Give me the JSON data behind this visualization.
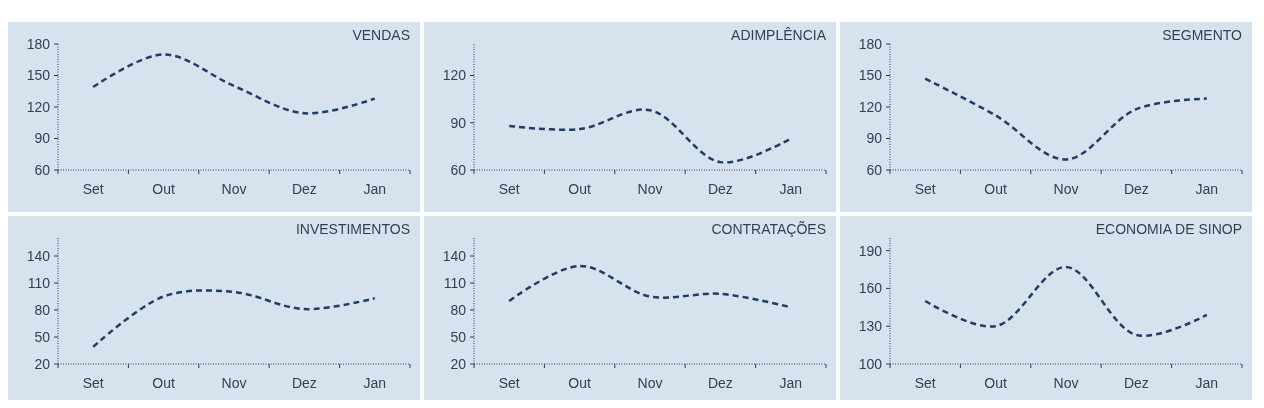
{
  "chart_data": [
    {
      "type": "line",
      "title": "VENDAS",
      "categories": [
        "Set",
        "Out",
        "Nov",
        "Dez",
        "Jan"
      ],
      "values": [
        139,
        170,
        140,
        114,
        128
      ],
      "color": "#1f3d66",
      "line_style": "dashed",
      "ylim": [
        60,
        180
      ],
      "yticks": [
        60,
        90,
        120,
        150,
        180
      ]
    },
    {
      "type": "line",
      "title": "ADIMPLÊNCIA",
      "categories": [
        "Set",
        "Out",
        "Nov",
        "Dez",
        "Jan"
      ],
      "values": [
        88,
        86,
        98,
        65,
        80
      ],
      "color": "#1f3d66",
      "line_style": "dashed",
      "ylim": [
        60,
        140
      ],
      "yticks": [
        60,
        90,
        120
      ]
    },
    {
      "type": "line",
      "title": "SEGMENTO",
      "categories": [
        "Set",
        "Out",
        "Nov",
        "Dez",
        "Jan"
      ],
      "values": [
        147,
        112,
        70,
        118,
        128
      ],
      "color": "#1f3d66",
      "line_style": "dashed",
      "ylim": [
        60,
        180
      ],
      "yticks": [
        60,
        90,
        120,
        150,
        180
      ]
    },
    {
      "type": "line",
      "title": "INVESTIMENTOS",
      "categories": [
        "Set",
        "Out",
        "Nov",
        "Dez",
        "Jan"
      ],
      "values": [
        39,
        95,
        100,
        81,
        93
      ],
      "color": "#1f3d66",
      "line_style": "dashed",
      "ylim": [
        20,
        160
      ],
      "yticks": [
        20,
        50,
        80,
        110,
        140
      ]
    },
    {
      "type": "line",
      "title": "CONTRATAÇÕES",
      "categories": [
        "Set",
        "Out",
        "Nov",
        "Dez",
        "Jan"
      ],
      "values": [
        90,
        129,
        95,
        98,
        83
      ],
      "color": "#1f3d66",
      "line_style": "dashed",
      "ylim": [
        20,
        160
      ],
      "yticks": [
        20,
        50,
        80,
        110,
        140
      ]
    },
    {
      "type": "line",
      "title": "ECONOMIA DE SINOP",
      "categories": [
        "Set",
        "Out",
        "Nov",
        "Dez",
        "Jan"
      ],
      "values": [
        150,
        130,
        177,
        123,
        139
      ],
      "color": "#1f3d66",
      "line_style": "dashed",
      "ylim": [
        100,
        200
      ],
      "yticks": [
        100,
        130,
        160,
        190
      ]
    }
  ]
}
